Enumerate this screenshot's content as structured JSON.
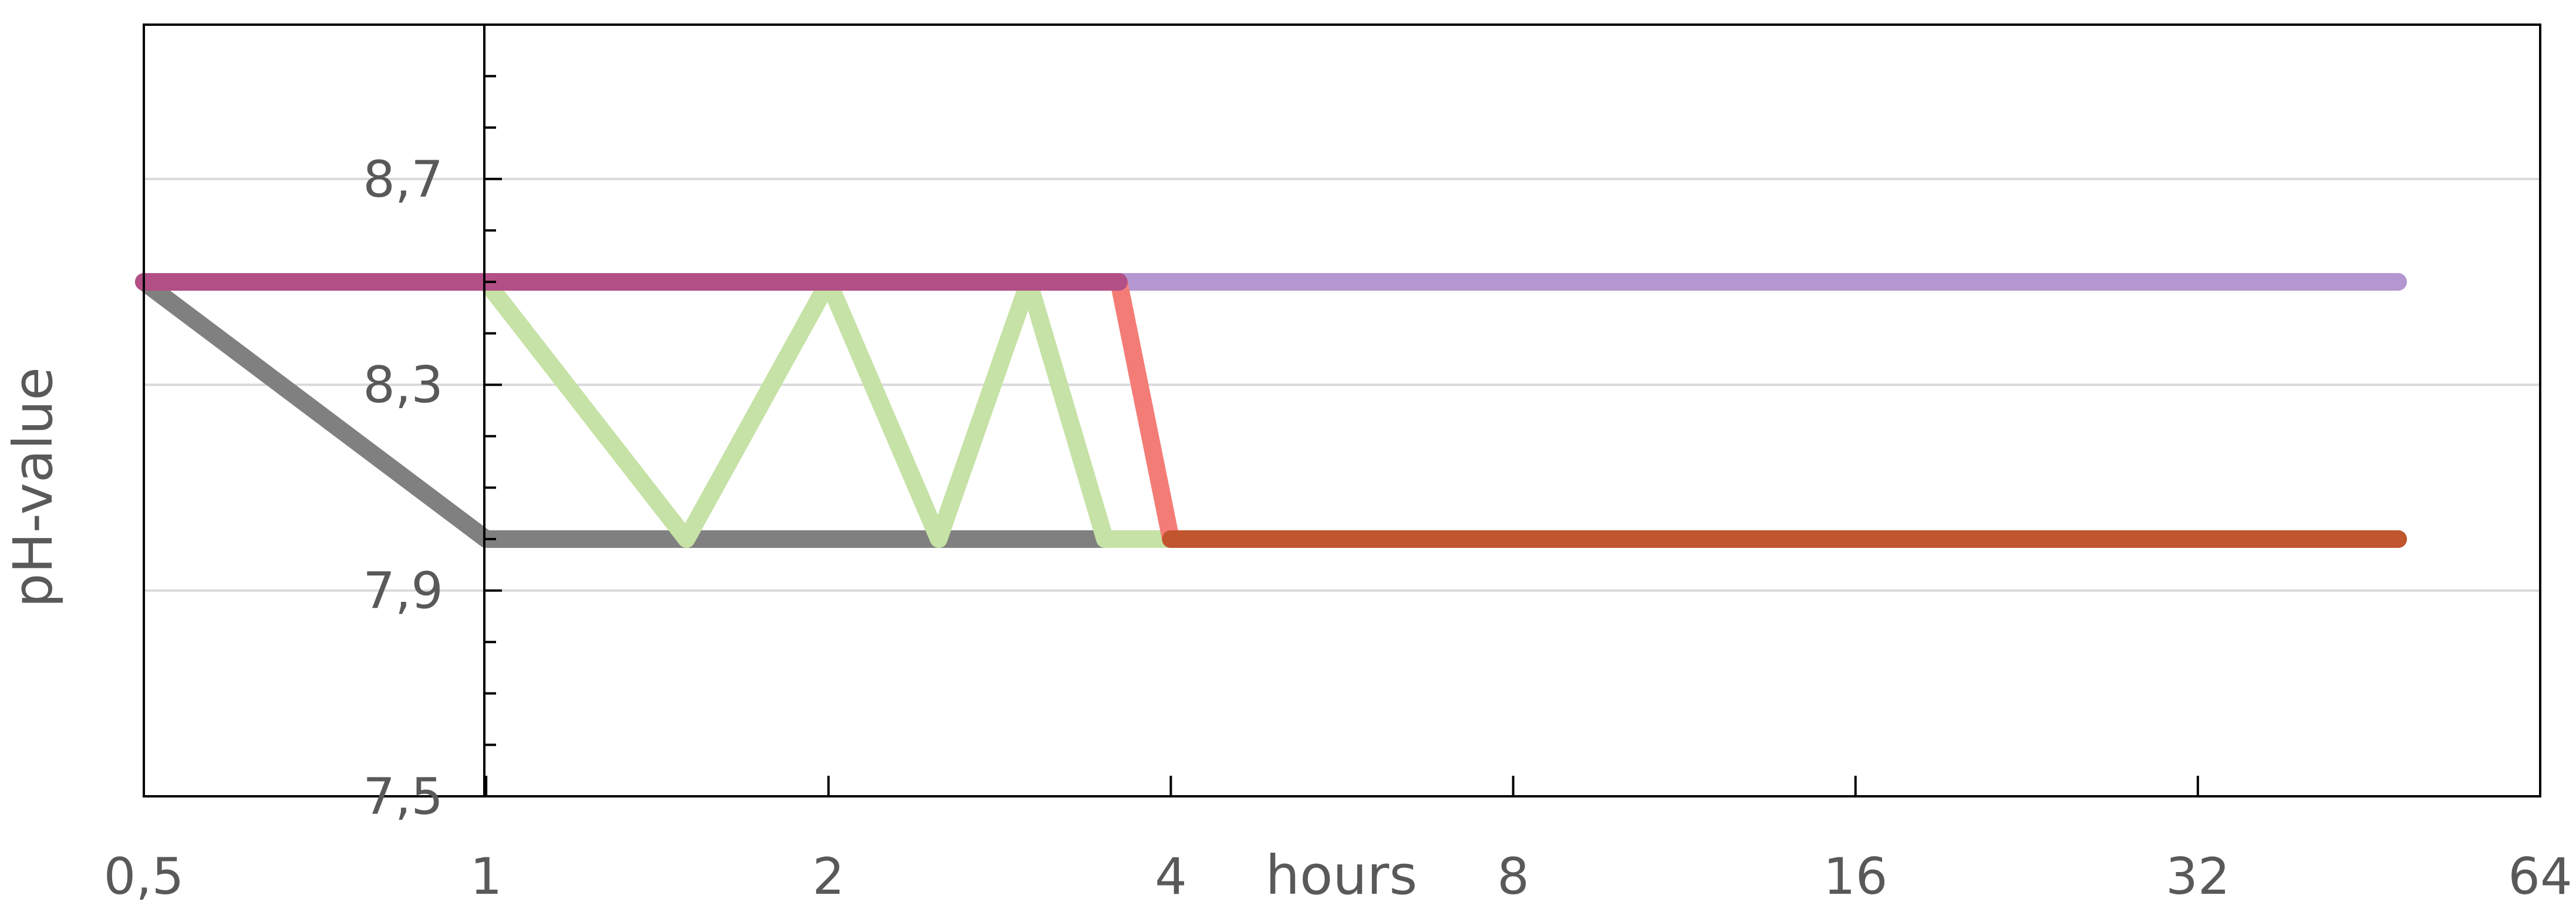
{
  "chart_data": {
    "type": "line",
    "title": "",
    "xlabel": "hours",
    "ylabel": "pH-value",
    "x_scale": "log2",
    "xlim": [
      0.5,
      64
    ],
    "ylim": [
      7.5,
      9.0
    ],
    "x_ticks": [
      0.5,
      1,
      2,
      4,
      8,
      16,
      32,
      64
    ],
    "x_tick_labels": [
      "0,5",
      "1",
      "2",
      "4",
      "8",
      "16",
      "32",
      "64"
    ],
    "y_ticks": [
      7.5,
      7.9,
      8.3,
      8.7
    ],
    "y_tick_labels": [
      "7,5",
      "7,9",
      "8,3",
      "8,7"
    ],
    "grid": {
      "horizontal": true,
      "vertical": false
    },
    "legend": "none",
    "series": [
      {
        "color": "#b497d0",
        "x": [
          0.5,
          48
        ],
        "y": [
          8.5,
          8.5
        ]
      },
      {
        "color": "#808080",
        "x": [
          0.5,
          1,
          48
        ],
        "y": [
          8.5,
          8.0,
          8.0
        ]
      },
      {
        "color": "#c6e2a6",
        "x": [
          0.5,
          1,
          1.5,
          2,
          2.5,
          3,
          3.5,
          4
        ],
        "y": [
          8.5,
          8.5,
          8.0,
          8.5,
          8.0,
          8.5,
          8.0,
          8.0
        ]
      },
      {
        "color": "#f47c76",
        "x": [
          0.5,
          3.6,
          4,
          48
        ],
        "y": [
          8.5,
          8.5,
          8.0,
          8.0
        ]
      },
      {
        "color": "#c0552e",
        "x": [
          4,
          48
        ],
        "y": [
          8.0,
          8.0
        ]
      },
      {
        "color": "#b24f86",
        "x": [
          0.5,
          3.6
        ],
        "y": [
          8.5,
          8.5
        ]
      }
    ]
  }
}
